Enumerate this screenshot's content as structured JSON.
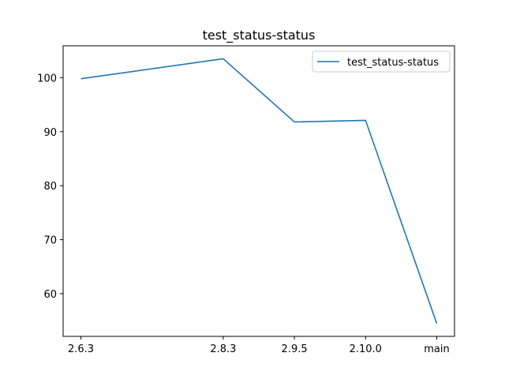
{
  "chart_data": {
    "type": "line",
    "title": "test_status-status",
    "xlabel": "",
    "ylabel": "",
    "categories": [
      "2.6.3",
      "2.8.3",
      "2.9.5",
      "2.10.0",
      "main"
    ],
    "x_positions": [
      0,
      2,
      3,
      4,
      5
    ],
    "series": [
      {
        "name": "test_status-status",
        "color": "#1f77b4",
        "values": [
          99.8,
          103.5,
          91.8,
          92.1,
          54.5
        ]
      }
    ],
    "yticks": [
      60,
      70,
      80,
      90,
      100
    ],
    "ylim": [
      52.1,
      105.9
    ],
    "xlim": [
      -0.25,
      5.25
    ],
    "grid": false,
    "legend_position": "upper right"
  }
}
